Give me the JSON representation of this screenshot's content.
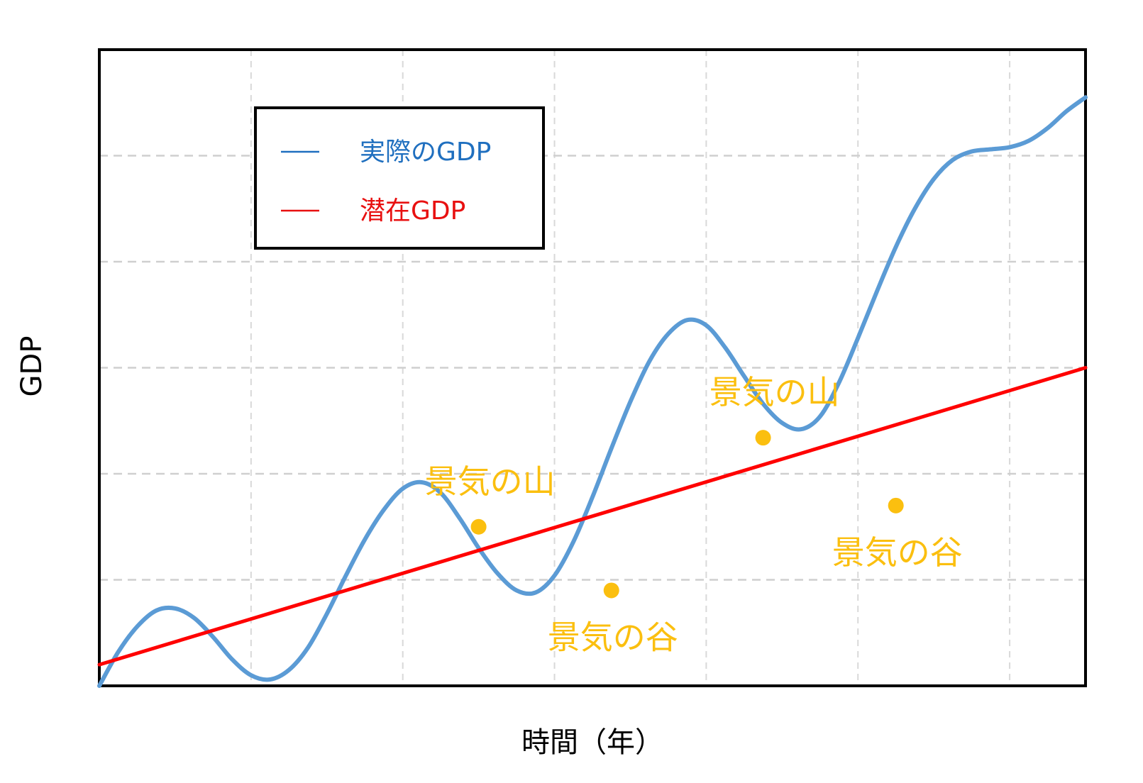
{
  "chart_data": {
    "type": "line",
    "xlabel": "時間（年）",
    "ylabel": "GDP",
    "xlim": [
      0,
      26
    ],
    "ylim": [
      0,
      60
    ],
    "grid": true,
    "xticks": [
      0,
      4,
      8,
      12,
      16,
      20,
      24
    ],
    "yticks": [
      0,
      10,
      20,
      30,
      40,
      50,
      60
    ],
    "legend_position": "top-left",
    "series": [
      {
        "name": "実際のGDP",
        "color": "#5b9bd5",
        "legend_color": "#1f6fbf",
        "x": [
          0,
          0.5,
          1,
          1.5,
          2,
          2.5,
          3,
          3.5,
          4,
          4.5,
          5,
          5.5,
          6,
          6.5,
          7,
          7.5,
          8,
          8.5,
          9,
          9.5,
          10,
          10.5,
          11,
          11.5,
          12,
          12.5,
          13,
          13.5,
          14,
          14.5,
          15,
          15.5,
          16,
          16.5,
          17,
          17.5,
          18,
          18.5,
          19,
          19.5,
          20,
          20.5,
          21,
          21.5,
          22,
          22.5,
          23,
          23.5,
          24,
          24.5,
          25,
          25.5,
          26
        ],
        "values": [
          0,
          3.2,
          5.6,
          7.1,
          7.3,
          6.4,
          4.6,
          2.5,
          1.0,
          0.6,
          1.5,
          3.6,
          6.8,
          10.4,
          13.8,
          16.6,
          18.6,
          19.2,
          18.2,
          15.8,
          13.0,
          10.6,
          9.0,
          8.8,
          10.4,
          13.6,
          17.8,
          22.4,
          26.8,
          30.6,
          33.2,
          34.5,
          34.0,
          31.9,
          29.2,
          26.6,
          24.8,
          24.2,
          25.4,
          28.6,
          32.8,
          37.2,
          41.4,
          45.0,
          47.8,
          49.6,
          50.4,
          50.6,
          50.8,
          51.4,
          52.6,
          54.2,
          55.5
        ]
      },
      {
        "name": "潜在GDP",
        "color": "#ff0000",
        "legend_color": "#e81010",
        "x": [
          0,
          26
        ],
        "values": [
          2,
          30
        ]
      }
    ],
    "annotations": [
      {
        "text": "景気の山",
        "x": 10,
        "y": 15,
        "position": "above"
      },
      {
        "text": "景気の谷",
        "x": 13.5,
        "y": 9,
        "position": "below"
      },
      {
        "text": "景気の山",
        "x": 17.5,
        "y": 23.4,
        "position": "above"
      },
      {
        "text": "景気の谷",
        "x": 21,
        "y": 17,
        "position": "below"
      }
    ],
    "annotation_color": "#fbbf0f"
  }
}
